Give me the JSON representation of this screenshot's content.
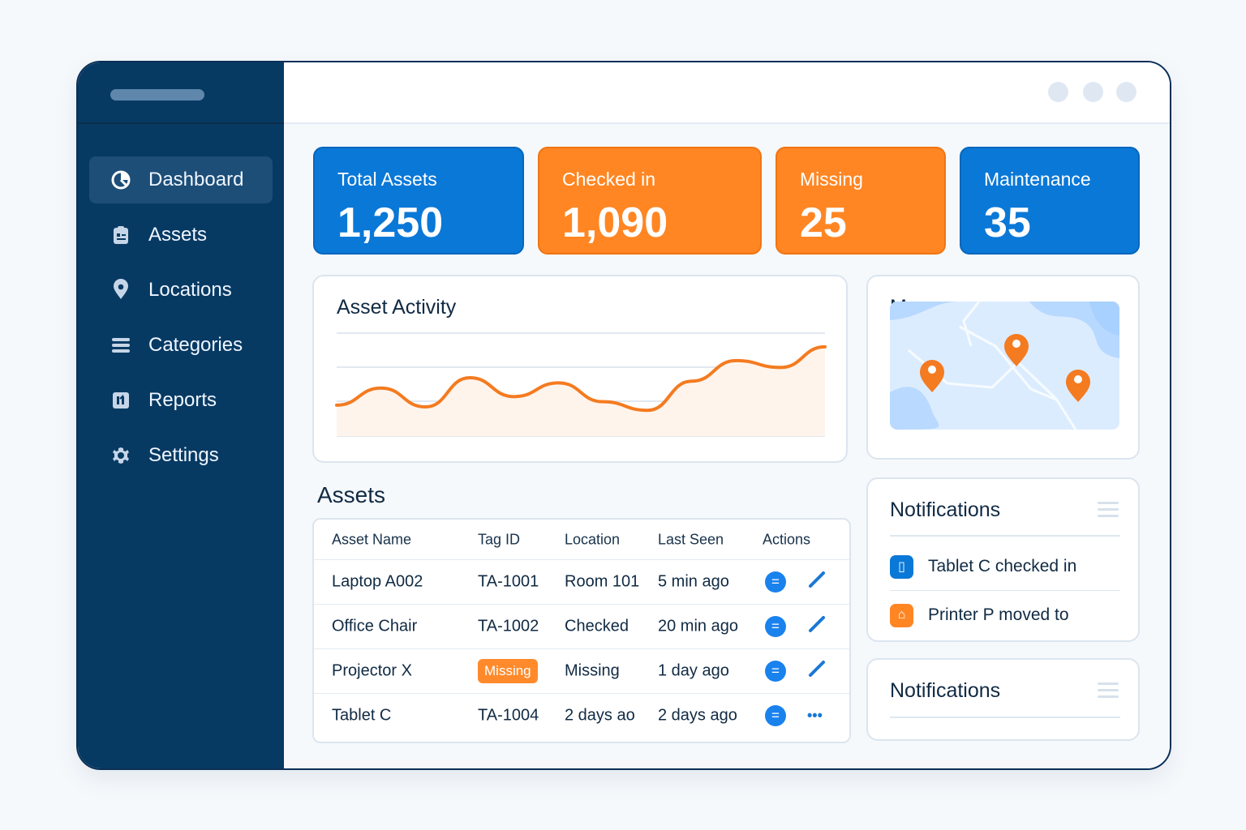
{
  "sidebar": {
    "items": [
      {
        "label": "Dashboard",
        "icon": "pie-chart-icon",
        "active": true
      },
      {
        "label": "Assets",
        "icon": "clipboard-icon",
        "active": false
      },
      {
        "label": "Locations",
        "icon": "location-pin-icon",
        "active": false
      },
      {
        "label": "Categories",
        "icon": "list-icon",
        "active": false
      },
      {
        "label": "Reports",
        "icon": "report-icon",
        "active": false
      },
      {
        "label": "Settings",
        "icon": "gear-icon",
        "active": false
      }
    ]
  },
  "stats": {
    "total": {
      "label": "Total Assets",
      "value": "1,250",
      "color": "#0a78d7"
    },
    "checked": {
      "label": "Checked in",
      "value": "1,090",
      "color": "#ff8623"
    },
    "missing": {
      "label": "Missing",
      "value": "25",
      "color": "#ff8623"
    },
    "maintenance": {
      "label": "Maintenance",
      "value": "35",
      "color": "#0a78d7"
    }
  },
  "activity": {
    "title": "Asset Activity",
    "chart_data": {
      "type": "area",
      "title": "Asset Activity",
      "x": [
        0,
        1,
        2,
        3,
        4,
        5,
        6,
        7,
        8,
        9,
        10,
        11
      ],
      "values": [
        18,
        28,
        17,
        34,
        23,
        31,
        20,
        15,
        32,
        44,
        40,
        52
      ],
      "ylim": [
        0,
        60
      ],
      "grid": true,
      "line_color": "#f47b20",
      "fill_color": "#fff4ec"
    }
  },
  "map": {
    "title": "Map"
  },
  "assets": {
    "title": "Assets",
    "columns": [
      "Asset Name",
      "Tag ID",
      "Location",
      "Last Seen",
      "Actions"
    ],
    "rows": [
      {
        "name": "Laptop A002",
        "tag": "TA-1001",
        "location": "Room 101",
        "seen": "5 min ago"
      },
      {
        "name": "Office Chair",
        "tag": "TA-1002",
        "location": "Checked",
        "seen": "20 min ago"
      },
      {
        "name": "Projector X",
        "tag": "Missing",
        "location": "Missing",
        "seen": "1 day ago"
      },
      {
        "name": "Tablet C",
        "tag": "TA-1004",
        "location": "2 days ao",
        "seen": "2 days ago"
      }
    ],
    "view_symbol": "=",
    "more_symbol": "•••"
  },
  "notifications": {
    "title": "Notifications",
    "items": [
      {
        "text": "Tablet C checked in",
        "icon": "tablet-icon",
        "color": "#0a78d7"
      },
      {
        "text": "Printer P moved to",
        "icon": "printer-icon",
        "color": "#ff8623"
      }
    ],
    "second_title": "Notifications"
  }
}
